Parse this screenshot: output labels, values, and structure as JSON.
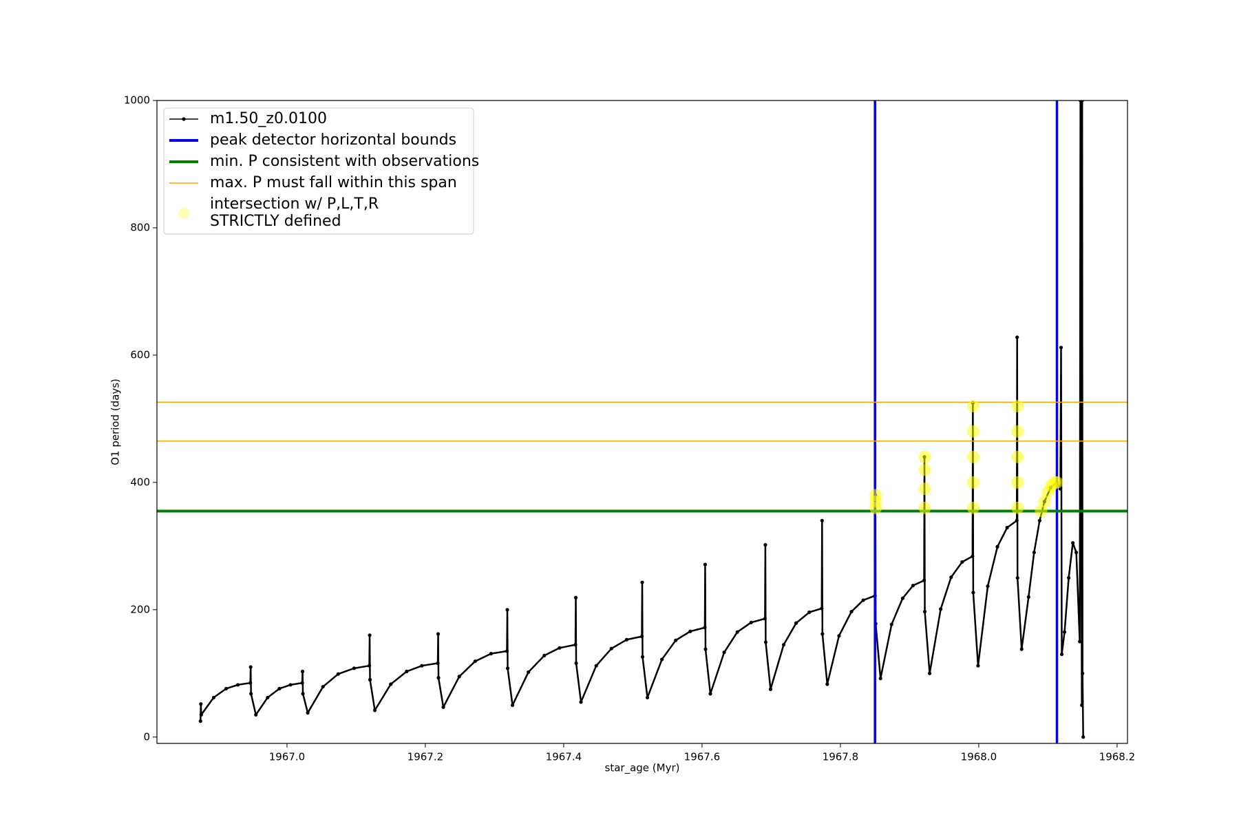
{
  "chart_data": {
    "type": "line",
    "xlabel": "star_age (Myr)",
    "ylabel": "O1 period (days)",
    "xlim": [
      1966.812,
      1968.215
    ],
    "ylim": [
      -10,
      1000
    ],
    "xticks": [
      {
        "value": 1967.0,
        "label": "1967.0"
      },
      {
        "value": 1967.2,
        "label": "1967.2"
      },
      {
        "value": 1967.4,
        "label": "1967.4"
      },
      {
        "value": 1967.6,
        "label": "1967.6"
      },
      {
        "value": 1967.8,
        "label": "1967.8"
      },
      {
        "value": 1968.0,
        "label": "1968.0"
      },
      {
        "value": 1968.2,
        "label": "1968.2"
      }
    ],
    "yticks": [
      0,
      200,
      400,
      600,
      800,
      1000
    ],
    "legend": "upper left",
    "series": [
      {
        "name": "m1.50_z0.0100",
        "type": "line",
        "color": "#000000",
        "x": [
          1966.875,
          1966.8755,
          1966.876,
          1966.894,
          1966.912,
          1966.929,
          1966.947,
          1966.9475,
          1966.948,
          1966.955,
          1966.972,
          1966.989,
          1967.005,
          1967.022,
          1967.0225,
          1967.023,
          1967.03,
          1967.052,
          1967.074,
          1967.097,
          1967.119,
          1967.1195,
          1967.12,
          1967.127,
          1967.15,
          1967.173,
          1967.195,
          1967.218,
          1967.2185,
          1967.219,
          1967.226,
          1967.249,
          1967.272,
          1967.295,
          1967.318,
          1967.3185,
          1967.319,
          1967.326,
          1967.349,
          1967.372,
          1967.394,
          1967.417,
          1967.4175,
          1967.418,
          1967.425,
          1967.447,
          1967.469,
          1967.491,
          1967.513,
          1967.5135,
          1967.514,
          1967.521,
          1967.542,
          1967.562,
          1967.583,
          1967.604,
          1967.6045,
          1967.605,
          1967.612,
          1967.632,
          1967.651,
          1967.671,
          1967.691,
          1967.6915,
          1967.692,
          1967.699,
          1967.718,
          1967.736,
          1967.755,
          1967.773,
          1967.7735,
          1967.774,
          1967.781,
          1967.798,
          1967.816,
          1967.833,
          1967.85,
          1967.8505,
          1967.851,
          1967.858,
          1967.874,
          1967.89,
          1967.905,
          1967.921,
          1967.9215,
          1967.922,
          1967.929,
          1967.945,
          1967.96,
          1967.976,
          1967.991,
          1967.9915,
          1967.992,
          1967.999,
          1968.013,
          1968.027,
          1968.041,
          1968.055,
          1968.0555,
          1968.056,
          1968.062,
          1968.072,
          1968.08,
          1968.088,
          1968.095,
          1968.104,
          1968.113,
          1968.118,
          1968.119,
          1968.12,
          1968.124,
          1968.13,
          1968.136,
          1968.141,
          1968.146,
          1968.147,
          1968.149,
          1968.1495,
          1968.15,
          1968.151
        ],
        "values": [
          25,
          52,
          35,
          62,
          76,
          82,
          85,
          110,
          68,
          35,
          62,
          76,
          82,
          85,
          103,
          68,
          38,
          79,
          99,
          108,
          112,
          160,
          90,
          42,
          83,
          103,
          112,
          116,
          162,
          93,
          47,
          95,
          119,
          131,
          135,
          200,
          108,
          50,
          102,
          128,
          140,
          145,
          219,
          116,
          55,
          112,
          139,
          153,
          158,
          243,
          126,
          62,
          122,
          152,
          166,
          172,
          271,
          138,
          68,
          133,
          165,
          180,
          186,
          302,
          149,
          75,
          145,
          179,
          196,
          202,
          340,
          162,
          83,
          159,
          197,
          215,
          222,
          380,
          178,
          92,
          177,
          218,
          238,
          246,
          440,
          197,
          100,
          201,
          251,
          275,
          284,
          525,
          227,
          112,
          237,
          299,
          329,
          340,
          628,
          250,
          138,
          220,
          290,
          340,
          370,
          392,
          400,
          390,
          612,
          130,
          165,
          250,
          305,
          290,
          150,
          1000,
          50,
          1000,
          100,
          0
        ]
      },
      {
        "name": "peak detector horizontal bounds",
        "type": "vline",
        "color": "#0000ee",
        "x": [
          1967.85,
          1968.113
        ]
      },
      {
        "name": "min. P consistent with observations",
        "type": "hline",
        "color": "#008000",
        "values": [
          355
        ]
      },
      {
        "name": "max. P must fall within this span",
        "type": "hline",
        "color": "#ffa500",
        "values": [
          465,
          526
        ]
      },
      {
        "name": "intersection w/ P,L,T,R\nSTRICTLY defined",
        "type": "scatter",
        "color": "#ffff00",
        "x": [
          1967.851,
          1967.851,
          1967.851,
          1967.922,
          1967.922,
          1967.922,
          1967.922,
          1967.992,
          1967.992,
          1967.992,
          1967.992,
          1967.992,
          1968.056,
          1968.056,
          1968.056,
          1968.056,
          1968.056,
          1968.09,
          1968.095,
          1968.1,
          1968.105,
          1968.11,
          1968.113
        ],
        "values": [
          360,
          370,
          380,
          360,
          390,
          420,
          440,
          360,
          400,
          440,
          480,
          520,
          360,
          400,
          440,
          480,
          520,
          355,
          370,
          385,
          395,
          400,
          400
        ]
      }
    ]
  }
}
